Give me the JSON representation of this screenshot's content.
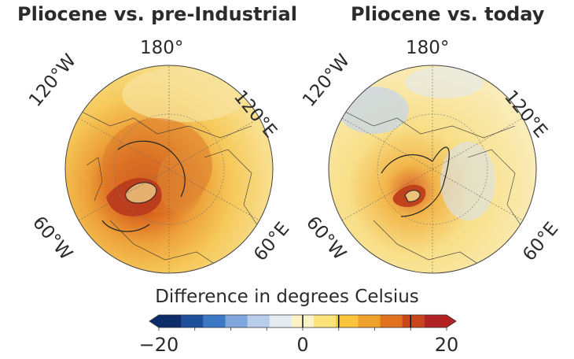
{
  "panels": [
    {
      "title": "Pliocene vs. pre-Industrial"
    },
    {
      "title": "Pliocene vs. today"
    }
  ],
  "longitude_labels": {
    "top": "180°",
    "upper_left": "120°W",
    "upper_right": "120°E",
    "lower_left": "60°W",
    "lower_right": "60°E"
  },
  "colorbar": {
    "title": "Difference in degrees Celsius",
    "min": -20,
    "max": 20,
    "tick_labels": [
      "−20",
      "0",
      "20"
    ],
    "ticks": [
      -20,
      0,
      20
    ],
    "contour_marks": [
      0,
      5,
      15
    ],
    "colors": [
      "#0d2a6b",
      "#1f4e9c",
      "#3b78c8",
      "#7fa7dd",
      "#b7cdea",
      "#e6ecf3",
      "#fbf3c4",
      "#fbe27a",
      "#f7c43b",
      "#eea02b",
      "#e2731d",
      "#c9461c",
      "#b32222"
    ]
  }
}
